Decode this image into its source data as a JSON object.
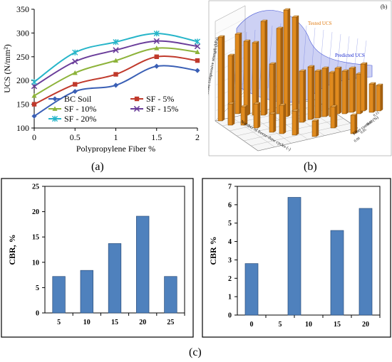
{
  "captions": {
    "a": "(a)",
    "b": "(b)",
    "c": "(c)"
  },
  "panel_b": {
    "tag": "(b)",
    "tested_label": "Tested UCS",
    "predicted_label": "Predicted UCS",
    "z_axis_label": "Unconfined compressive strength (kPa)",
    "x_axis_label": "Number of freeze-thaw cycles (-)",
    "y_axis_label": "Fiber content (%)",
    "y_ticks": [
      "0.00",
      "0.05",
      "0.10",
      "0.15"
    ],
    "colors": {
      "bar": "#e08a1e",
      "surface": "#4b5bd6",
      "tested_text": "#e07a10",
      "predicted_text": "#1a2ad0"
    }
  },
  "chart_data": [
    {
      "id": "ucs",
      "type": "line",
      "ylabel": "UCS (N/mm²)",
      "xlabel": "Polypropylene Fiber %",
      "x": [
        0,
        0.5,
        1,
        1.5,
        2
      ],
      "xticks": [
        "0",
        "0.5",
        "1",
        "1.5",
        "2"
      ],
      "yticks": [
        "100",
        "150",
        "200",
        "250",
        "300",
        "350"
      ],
      "xlim": [
        0,
        2
      ],
      "ylim": [
        100,
        350
      ],
      "series": [
        {
          "name": "BC Soil",
          "values": [
            125,
            177,
            190,
            230,
            221
          ],
          "color": "#3a5fb5",
          "marker": "diamond"
        },
        {
          "name": "SF - 5%",
          "values": [
            150,
            192,
            213,
            250,
            242
          ],
          "color": "#c0392b",
          "marker": "square"
        },
        {
          "name": "SF - 10%",
          "values": [
            168,
            216,
            242,
            268,
            260
          ],
          "color": "#8db33a",
          "marker": "triangle"
        },
        {
          "name": "SF - 15%",
          "values": [
            188,
            240,
            264,
            283,
            272
          ],
          "color": "#6a3d9a",
          "marker": "x"
        },
        {
          "name": "SF - 20%",
          "values": [
            197,
            259,
            281,
            299,
            282
          ],
          "color": "#26b5c9",
          "marker": "star"
        }
      ]
    },
    {
      "id": "cbr1",
      "type": "bar",
      "ylabel": "CBR, %",
      "categories": [
        "5",
        "10",
        "15",
        "20",
        "25"
      ],
      "values": [
        7.2,
        8.4,
        13.7,
        19.1,
        7.2
      ],
      "yticks": [
        "0",
        "5",
        "10",
        "15",
        "20",
        "25"
      ],
      "ylim": [
        0,
        25
      ],
      "bar_color": "#4f81bd"
    },
    {
      "id": "cbr2",
      "type": "bar",
      "ylabel": "CBR %",
      "xticks": [
        "0",
        "5",
        "10",
        "15",
        "20"
      ],
      "values": [
        2.8,
        6.4,
        4.6,
        5.8
      ],
      "yticks": [
        "0",
        "1",
        "2",
        "3",
        "4",
        "5",
        "6",
        "7"
      ],
      "ylim": [
        0,
        7
      ],
      "bar_color": "#4f81bd"
    }
  ]
}
